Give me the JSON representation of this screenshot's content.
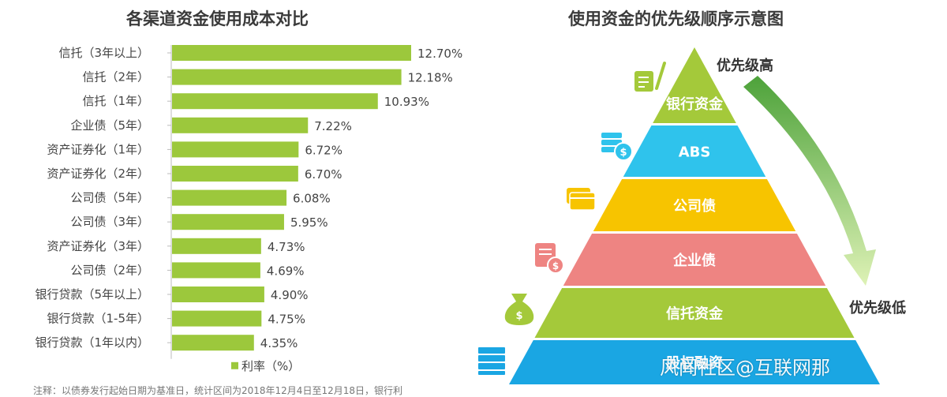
{
  "colors": {
    "bar": "#9cc83c",
    "green_tier": "#a4c93a",
    "blue_tier": "#2fc3ec",
    "yellow_tier": "#f7c400",
    "pink_tier": "#ee8482",
    "deep_blue_tier": "#1aa6e3",
    "arrow_dark": "#4da23a",
    "arrow_light": "#def2b6"
  },
  "chart_data": [
    {
      "type": "bar",
      "orientation": "horizontal",
      "title": "各渠道资金使用成本对比",
      "categories": [
        "信托（3年以上）",
        "信托（2年）",
        "信托（1年）",
        "企业债（5年）",
        "资产证券化（1年）",
        "资产证券化（2年）",
        "公司债（5年）",
        "公司债（3年）",
        "资产证券化（3年）",
        "公司债（2年）",
        "银行贷款（5年以上）",
        "银行贷款（1-5年）",
        "银行贷款（1年以内）"
      ],
      "series": [
        {
          "name": "利率（%）",
          "values": [
            12.7,
            12.18,
            10.93,
            7.22,
            6.72,
            6.7,
            6.08,
            5.95,
            4.73,
            4.69,
            4.9,
            4.75,
            4.35
          ],
          "value_labels": [
            "12.70%",
            "12.18%",
            "10.93%",
            "7.22%",
            "6.72%",
            "6.70%",
            "6.08%",
            "5.95%",
            "4.73%",
            "4.69%",
            "4.90%",
            "4.75%",
            "4.35%"
          ]
        }
      ],
      "xlim": [
        0,
        14
      ],
      "grid": false,
      "legend_placement": "bottom-center",
      "legend_label": "利率（%）",
      "footnote": "注释：以债券发行起始日期为基准日，统计区间为2018年12月4日至12月18日，银行利"
    },
    {
      "type": "diagram",
      "title": "使用资金的优先级顺序示意图",
      "tiers": [
        {
          "label": "银行资金",
          "color_key": "green_tier",
          "icon": "document-pen-icon"
        },
        {
          "label": "ABS",
          "color_key": "blue_tier",
          "icon": "cash-stack-dollar-icon"
        },
        {
          "label": "公司债",
          "color_key": "yellow_tier",
          "icon": "credit-card-icon"
        },
        {
          "label": "企业债",
          "color_key": "pink_tier",
          "icon": "invoice-dollar-icon"
        },
        {
          "label": "信托资金",
          "color_key": "green_tier",
          "icon": "money-bag-icon"
        },
        {
          "label": "股权融资",
          "color_key": "deep_blue_tier",
          "icon": "banknote-stack-icon"
        }
      ],
      "priority_high": "优先级高",
      "priority_low": "优先级低"
    }
  ],
  "watermark": "风闻社区@互联网那"
}
